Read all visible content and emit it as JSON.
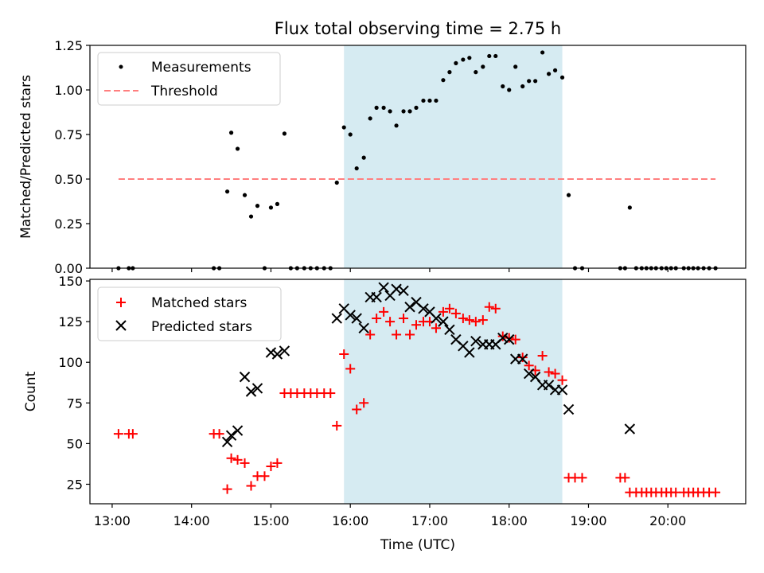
{
  "title": "Flux total observing time = 2.75 h",
  "colors": {
    "shade": "#add8e6",
    "threshold": "#ff7f7f",
    "matched": "#ff0000",
    "predicted": "#000000",
    "measurement": "#000000"
  },
  "chart_data": [
    {
      "type": "scatter",
      "ylabel": "Matched/Predicted stars",
      "xlabel": "",
      "xlim": [
        12.72,
        20.98
      ],
      "ylim": [
        0,
        1.25
      ],
      "yticks": [
        0.0,
        0.25,
        0.5,
        0.75,
        1.0,
        1.25
      ],
      "ytick_labels": [
        "0.00",
        "0.25",
        "0.50",
        "0.75",
        "1.00",
        "1.25"
      ],
      "shaded_span": [
        15.92,
        18.67
      ],
      "legend": {
        "placement": "top-left",
        "measurements_label": "Measurements",
        "threshold_label": "Threshold"
      },
      "threshold": {
        "y": 0.5,
        "x_range": [
          13.08,
          20.6
        ]
      },
      "measurements": [
        [
          13.08,
          0
        ],
        [
          13.21,
          0
        ],
        [
          13.26,
          0
        ],
        [
          14.28,
          0
        ],
        [
          14.35,
          0
        ],
        [
          14.45,
          0.43
        ],
        [
          14.5,
          0.76
        ],
        [
          14.58,
          0.67
        ],
        [
          14.67,
          0.41
        ],
        [
          14.75,
          0.29
        ],
        [
          14.83,
          0.35
        ],
        [
          14.92,
          0
        ],
        [
          15.0,
          0.34
        ],
        [
          15.08,
          0.36
        ],
        [
          15.17,
          0.755
        ],
        [
          15.25,
          0
        ],
        [
          15.33,
          0
        ],
        [
          15.42,
          0
        ],
        [
          15.5,
          0
        ],
        [
          15.58,
          0
        ],
        [
          15.67,
          0
        ],
        [
          15.75,
          0
        ],
        [
          15.83,
          0.48
        ],
        [
          15.92,
          0.79
        ],
        [
          16.0,
          0.75
        ],
        [
          16.08,
          0.56
        ],
        [
          16.17,
          0.62
        ],
        [
          16.25,
          0.84
        ],
        [
          16.33,
          0.9
        ],
        [
          16.42,
          0.9
        ],
        [
          16.5,
          0.88
        ],
        [
          16.58,
          0.8
        ],
        [
          16.67,
          0.88
        ],
        [
          16.75,
          0.88
        ],
        [
          16.83,
          0.9
        ],
        [
          16.92,
          0.94
        ],
        [
          17.0,
          0.94
        ],
        [
          17.08,
          0.94
        ],
        [
          17.17,
          1.055
        ],
        [
          17.25,
          1.1
        ],
        [
          17.33,
          1.15
        ],
        [
          17.42,
          1.17
        ],
        [
          17.5,
          1.18
        ],
        [
          17.58,
          1.1
        ],
        [
          17.67,
          1.13
        ],
        [
          17.75,
          1.19
        ],
        [
          17.83,
          1.19
        ],
        [
          17.92,
          1.02
        ],
        [
          18.0,
          1.0
        ],
        [
          18.08,
          1.13
        ],
        [
          18.17,
          1.02
        ],
        [
          18.25,
          1.05
        ],
        [
          18.33,
          1.05
        ],
        [
          18.42,
          1.21
        ],
        [
          18.5,
          1.09
        ],
        [
          18.58,
          1.11
        ],
        [
          18.67,
          1.07
        ],
        [
          18.75,
          0.41
        ],
        [
          18.83,
          0
        ],
        [
          18.92,
          0
        ],
        [
          19.4,
          0
        ],
        [
          19.46,
          0
        ],
        [
          19.52,
          0.34
        ],
        [
          19.6,
          0
        ],
        [
          19.67,
          0
        ],
        [
          19.73,
          0
        ],
        [
          19.79,
          0
        ],
        [
          19.85,
          0
        ],
        [
          19.92,
          0
        ],
        [
          19.98,
          0
        ],
        [
          20.04,
          0
        ],
        [
          20.1,
          0
        ],
        [
          20.2,
          0
        ],
        [
          20.26,
          0
        ],
        [
          20.32,
          0
        ],
        [
          20.38,
          0
        ],
        [
          20.45,
          0
        ],
        [
          20.52,
          0
        ],
        [
          20.6,
          0
        ]
      ]
    },
    {
      "type": "scatter",
      "ylabel": "Count",
      "xlabel": "Time (UTC)",
      "xlim": [
        12.72,
        20.98
      ],
      "ylim": [
        13,
        151
      ],
      "yticks": [
        25,
        50,
        75,
        100,
        125,
        150
      ],
      "ytick_labels": [
        "25",
        "50",
        "75",
        "100",
        "125",
        "150"
      ],
      "xticks": [
        13,
        14,
        15,
        16,
        17,
        18,
        19,
        20
      ],
      "xtick_labels": [
        "13:00",
        "14:00",
        "15:00",
        "16:00",
        "17:00",
        "18:00",
        "19:00",
        "20:00"
      ],
      "shaded_span": [
        15.92,
        18.67
      ],
      "legend": {
        "placement": "top-left",
        "matched_label": "Matched stars",
        "predicted_label": "Predicted stars"
      },
      "series": [
        {
          "name": "Matched stars",
          "marker": "plus",
          "points": [
            [
              13.08,
              56
            ],
            [
              13.21,
              56
            ],
            [
              13.26,
              56
            ],
            [
              14.28,
              56
            ],
            [
              14.35,
              56
            ],
            [
              14.45,
              22
            ],
            [
              14.5,
              41
            ],
            [
              14.58,
              40
            ],
            [
              14.67,
              38
            ],
            [
              14.75,
              24
            ],
            [
              14.83,
              30
            ],
            [
              14.92,
              30
            ],
            [
              15.0,
              36
            ],
            [
              15.08,
              38
            ],
            [
              15.17,
              81
            ],
            [
              15.25,
              81
            ],
            [
              15.33,
              81
            ],
            [
              15.42,
              81
            ],
            [
              15.5,
              81
            ],
            [
              15.58,
              81
            ],
            [
              15.67,
              81
            ],
            [
              15.75,
              81
            ],
            [
              15.83,
              61
            ],
            [
              15.92,
              105
            ],
            [
              16.0,
              96
            ],
            [
              16.08,
              71
            ],
            [
              16.17,
              75
            ],
            [
              16.25,
              117
            ],
            [
              16.33,
              127
            ],
            [
              16.42,
              131
            ],
            [
              16.5,
              125
            ],
            [
              16.58,
              117
            ],
            [
              16.67,
              127
            ],
            [
              16.75,
              117
            ],
            [
              16.83,
              123
            ],
            [
              16.92,
              125
            ],
            [
              17.0,
              125
            ],
            [
              17.08,
              121
            ],
            [
              17.17,
              131
            ],
            [
              17.25,
              133
            ],
            [
              17.33,
              130
            ],
            [
              17.42,
              127
            ],
            [
              17.5,
              126
            ],
            [
              17.58,
              125
            ],
            [
              17.67,
              126
            ],
            [
              17.75,
              134
            ],
            [
              17.83,
              133
            ],
            [
              17.92,
              116
            ],
            [
              18.0,
              115
            ],
            [
              18.08,
              114
            ],
            [
              18.17,
              103
            ],
            [
              18.25,
              98
            ],
            [
              18.33,
              95
            ],
            [
              18.42,
              104
            ],
            [
              18.5,
              94
            ],
            [
              18.58,
              93
            ],
            [
              18.67,
              89
            ],
            [
              18.75,
              29
            ],
            [
              18.83,
              29
            ],
            [
              18.92,
              29
            ],
            [
              19.4,
              29
            ],
            [
              19.46,
              29
            ],
            [
              19.52,
              20
            ],
            [
              19.6,
              20
            ],
            [
              19.67,
              20
            ],
            [
              19.73,
              20
            ],
            [
              19.79,
              20
            ],
            [
              19.85,
              20
            ],
            [
              19.92,
              20
            ],
            [
              19.98,
              20
            ],
            [
              20.04,
              20
            ],
            [
              20.1,
              20
            ],
            [
              20.2,
              20
            ],
            [
              20.26,
              20
            ],
            [
              20.32,
              20
            ],
            [
              20.38,
              20
            ],
            [
              20.45,
              20
            ],
            [
              20.52,
              20
            ],
            [
              20.6,
              20
            ]
          ]
        },
        {
          "name": "Predicted stars",
          "marker": "x",
          "points": [
            [
              14.45,
              51
            ],
            [
              14.5,
              55
            ],
            [
              14.58,
              58
            ],
            [
              14.67,
              91
            ],
            [
              14.75,
              82
            ],
            [
              14.83,
              84
            ],
            [
              15.0,
              106
            ],
            [
              15.08,
              105
            ],
            [
              15.17,
              107
            ],
            [
              15.83,
              127
            ],
            [
              15.92,
              133
            ],
            [
              16.0,
              129
            ],
            [
              16.08,
              127
            ],
            [
              16.17,
              121
            ],
            [
              16.25,
              140
            ],
            [
              16.33,
              140
            ],
            [
              16.42,
              146
            ],
            [
              16.5,
              141
            ],
            [
              16.58,
              145
            ],
            [
              16.67,
              144
            ],
            [
              16.75,
              134
            ],
            [
              16.83,
              137
            ],
            [
              16.92,
              133
            ],
            [
              17.0,
              131
            ],
            [
              17.08,
              127
            ],
            [
              17.17,
              125
            ],
            [
              17.25,
              120
            ],
            [
              17.33,
              114
            ],
            [
              17.42,
              110
            ],
            [
              17.5,
              106
            ],
            [
              17.58,
              113
            ],
            [
              17.67,
              111
            ],
            [
              17.75,
              111
            ],
            [
              17.83,
              111
            ],
            [
              17.92,
              115
            ],
            [
              18.0,
              114
            ],
            [
              18.08,
              102
            ],
            [
              18.17,
              102
            ],
            [
              18.25,
              93
            ],
            [
              18.33,
              91
            ],
            [
              18.42,
              86
            ],
            [
              18.5,
              86
            ],
            [
              18.58,
              83
            ],
            [
              18.67,
              83
            ],
            [
              18.75,
              71
            ],
            [
              19.52,
              59
            ]
          ]
        }
      ]
    }
  ]
}
